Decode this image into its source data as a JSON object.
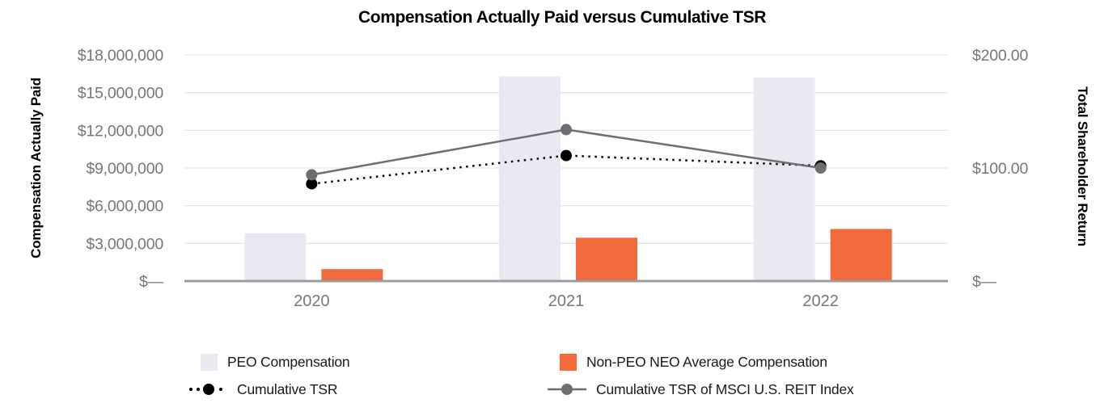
{
  "title": "Compensation Actually Paid versus Cumulative TSR",
  "chart_data": {
    "type": "combo-bar-line",
    "categories": [
      "2020",
      "2021",
      "2022"
    ],
    "bar_series": [
      {
        "name": "PEO Compensation",
        "color": "#E9EAF1",
        "axis": "left",
        "values": [
          3800000,
          16300000,
          16200000
        ]
      },
      {
        "name": "Non-PEO NEO Average Compensation",
        "color": "#F2693C",
        "axis": "left",
        "values": [
          950000,
          3450000,
          4150000
        ]
      }
    ],
    "line_series": [
      {
        "name": "Cumulative TSR",
        "color": "#000000",
        "style": "dotted",
        "axis": "right",
        "values": [
          86,
          111,
          102
        ]
      },
      {
        "name": "Cumulative TSR of MSCI U.S. REIT Index",
        "color": "#6D6E71",
        "style": "solid",
        "axis": "right",
        "values": [
          94,
          134,
          100
        ]
      }
    ],
    "left_axis": {
      "title": "Compensation Actually Paid",
      "max": 18000000,
      "ticks": [
        {
          "label": "$18,000,000",
          "value": 18000000
        },
        {
          "label": "$15,000,000",
          "value": 15000000
        },
        {
          "label": "$12,000,000",
          "value": 12000000
        },
        {
          "label": "$9,000,000",
          "value": 9000000
        },
        {
          "label": "$6,000,000",
          "value": 6000000
        },
        {
          "label": "$3,000,000",
          "value": 3000000
        },
        {
          "label": "$—",
          "value": 0
        }
      ]
    },
    "right_axis": {
      "title": "Total Shareholder Return",
      "max": 200,
      "ticks": [
        {
          "label": "$200.00",
          "value": 200
        },
        {
          "label": "$100.00",
          "value": 100
        },
        {
          "label": "$—",
          "value": 0
        }
      ]
    },
    "grid": true,
    "legend_position": "bottom"
  },
  "legend": {
    "items": [
      {
        "label": "PEO Compensation",
        "marker": "square",
        "color": "#E9EAF1"
      },
      {
        "label": "Non-PEO NEO Average Compensation",
        "marker": "square",
        "color": "#F2693C"
      },
      {
        "label": "Cumulative TSR",
        "marker": "dotted-line-dot",
        "color": "#000000"
      },
      {
        "label": "Cumulative TSR of MSCI U.S. REIT Index",
        "marker": "solid-line-dot",
        "color": "#6D6E71"
      }
    ]
  },
  "styles": {
    "gridline_color": "#E5E6E8",
    "axis_line_color": "#9C9DA0",
    "tick_text_color": "#76777A"
  }
}
